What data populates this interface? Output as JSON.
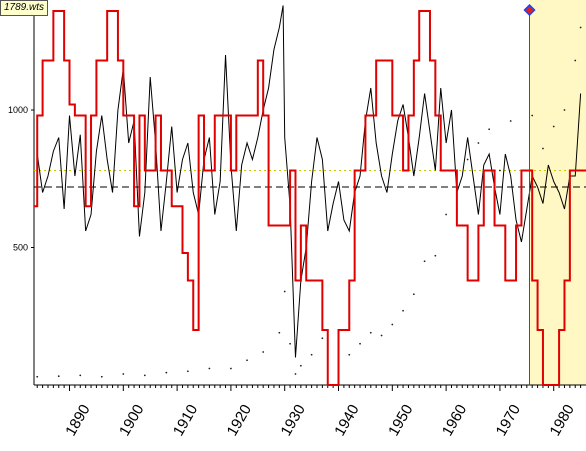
{
  "file_label": "1789.wts",
  "colors": {
    "background": "#ffffff",
    "highlight": "#fff8c4",
    "step_line": "#e00000",
    "price_line": "#000000",
    "index_dots": "#222222",
    "dash_line": "#000000",
    "yellow_dash": "#c8c800",
    "marker_line": "#007a3d",
    "marker_top": "#1a40ff",
    "marker_diamond": "#dd2020"
  },
  "chart_data": {
    "type": "line",
    "title": "",
    "xlabel": "",
    "ylabel": "",
    "xlim": [
      1883.4,
      1986
    ],
    "ylim": [
      0,
      1400
    ],
    "x_ticks": [
      "1890",
      "1900",
      "1910",
      "1920",
      "1930",
      "1940",
      "1950",
      "1960",
      "1970",
      "1980"
    ],
    "y_ticks": [
      "500",
      "1000"
    ],
    "highlight_range": [
      1975.5,
      1986
    ],
    "marker_year": 1975.5,
    "reference_lines": {
      "dashed_black": 720,
      "dashed_yellow": 780
    },
    "series": [
      {
        "values": [
          [
            1884,
            840
          ],
          [
            1885,
            700
          ],
          [
            1886,
            760
          ],
          [
            1887,
            850
          ],
          [
            1888,
            900
          ],
          [
            1889,
            640
          ],
          [
            1890,
            980
          ],
          [
            1891,
            760
          ],
          [
            1892,
            910
          ],
          [
            1893,
            560
          ],
          [
            1894,
            620
          ],
          [
            1895,
            850
          ],
          [
            1896,
            980
          ],
          [
            1897,
            820
          ],
          [
            1898,
            700
          ],
          [
            1899,
            1000
          ],
          [
            1900,
            1150
          ],
          [
            1901,
            880
          ],
          [
            1902,
            960
          ],
          [
            1903,
            540
          ],
          [
            1904,
            700
          ],
          [
            1905,
            1120
          ],
          [
            1906,
            880
          ],
          [
            1907,
            560
          ],
          [
            1908,
            740
          ],
          [
            1909,
            940
          ],
          [
            1910,
            700
          ],
          [
            1911,
            820
          ],
          [
            1912,
            880
          ],
          [
            1913,
            700
          ],
          [
            1914,
            620
          ],
          [
            1915,
            820
          ],
          [
            1916,
            900
          ],
          [
            1917,
            620
          ],
          [
            1918,
            740
          ],
          [
            1919,
            1200
          ],
          [
            1920,
            800
          ],
          [
            1921,
            560
          ],
          [
            1922,
            800
          ],
          [
            1923,
            880
          ],
          [
            1924,
            820
          ],
          [
            1925,
            900
          ],
          [
            1926,
            1000
          ],
          [
            1927,
            1080
          ],
          [
            1928,
            1220
          ],
          [
            1929,
            1300
          ],
          [
            1929.7,
            1380
          ],
          [
            1930,
            900
          ],
          [
            1931,
            650
          ],
          [
            1932,
            100
          ],
          [
            1933,
            380
          ],
          [
            1934,
            500
          ],
          [
            1935,
            740
          ],
          [
            1936,
            900
          ],
          [
            1937,
            820
          ],
          [
            1938,
            560
          ],
          [
            1939,
            660
          ],
          [
            1940,
            740
          ],
          [
            1941,
            600
          ],
          [
            1942,
            560
          ],
          [
            1943,
            700
          ],
          [
            1944,
            760
          ],
          [
            1945,
            960
          ],
          [
            1946,
            1080
          ],
          [
            1947,
            880
          ],
          [
            1948,
            760
          ],
          [
            1949,
            700
          ],
          [
            1950,
            840
          ],
          [
            1951,
            960
          ],
          [
            1952,
            1020
          ],
          [
            1953,
            900
          ],
          [
            1954,
            760
          ],
          [
            1955,
            900
          ],
          [
            1956,
            1060
          ],
          [
            1957,
            920
          ],
          [
            1958,
            780
          ],
          [
            1959,
            1080
          ],
          [
            1960,
            880
          ],
          [
            1961,
            1000
          ],
          [
            1962,
            700
          ],
          [
            1963,
            760
          ],
          [
            1964,
            900
          ],
          [
            1965,
            760
          ],
          [
            1966,
            620
          ],
          [
            1967,
            800
          ],
          [
            1968,
            840
          ],
          [
            1969,
            720
          ],
          [
            1970,
            620
          ],
          [
            1971,
            840
          ],
          [
            1972,
            760
          ],
          [
            1973,
            600
          ],
          [
            1974,
            520
          ],
          [
            1975,
            640
          ],
          [
            1976,
            760
          ],
          [
            1977,
            720
          ],
          [
            1978,
            660
          ],
          [
            1979,
            800
          ],
          [
            1980,
            740
          ],
          [
            1981,
            700
          ],
          [
            1982,
            640
          ],
          [
            1983,
            760
          ],
          [
            1984,
            760
          ],
          [
            1985,
            1060
          ]
        ]
      },
      {
        "values": [
          [
            1884,
            30
          ],
          [
            1888,
            32
          ],
          [
            1892,
            35
          ],
          [
            1896,
            30
          ],
          [
            1900,
            40
          ],
          [
            1904,
            35
          ],
          [
            1908,
            45
          ],
          [
            1912,
            50
          ],
          [
            1916,
            60
          ],
          [
            1920,
            60
          ],
          [
            1923,
            90
          ],
          [
            1926,
            120
          ],
          [
            1929,
            190
          ],
          [
            1930,
            340
          ],
          [
            1931,
            150
          ],
          [
            1932,
            40
          ],
          [
            1933,
            70
          ],
          [
            1935,
            110
          ],
          [
            1937,
            170
          ],
          [
            1938,
            120
          ],
          [
            1940,
            140
          ],
          [
            1942,
            110
          ],
          [
            1944,
            150
          ],
          [
            1946,
            190
          ],
          [
            1948,
            180
          ],
          [
            1950,
            220
          ],
          [
            1952,
            270
          ],
          [
            1954,
            330
          ],
          [
            1956,
            450
          ],
          [
            1958,
            470
          ],
          [
            1960,
            620
          ],
          [
            1962,
            640
          ],
          [
            1964,
            820
          ],
          [
            1966,
            880
          ],
          [
            1968,
            930
          ],
          [
            1970,
            780
          ],
          [
            1972,
            960
          ],
          [
            1974,
            680
          ],
          [
            1976,
            980
          ],
          [
            1978,
            860
          ],
          [
            1980,
            940
          ],
          [
            1982,
            1000
          ],
          [
            1984,
            1180
          ],
          [
            1985,
            1300
          ]
        ]
      },
      {
        "values": [
          [
            1883.4,
            650
          ],
          [
            1884,
            650
          ],
          [
            1884,
            980
          ],
          [
            1885,
            980
          ],
          [
            1885,
            1180
          ],
          [
            1887,
            1180
          ],
          [
            1887,
            1360
          ],
          [
            1889,
            1360
          ],
          [
            1889,
            1180
          ],
          [
            1890,
            1180
          ],
          [
            1890,
            1020
          ],
          [
            1891,
            1020
          ],
          [
            1891,
            980
          ],
          [
            1893,
            980
          ],
          [
            1893,
            650
          ],
          [
            1894,
            650
          ],
          [
            1894,
            980
          ],
          [
            1895,
            980
          ],
          [
            1895,
            1180
          ],
          [
            1897,
            1180
          ],
          [
            1897,
            1360
          ],
          [
            1899,
            1360
          ],
          [
            1899,
            1180
          ],
          [
            1900,
            1180
          ],
          [
            1900,
            980
          ],
          [
            1902,
            980
          ],
          [
            1902,
            650
          ],
          [
            1903,
            650
          ],
          [
            1903,
            980
          ],
          [
            1904,
            980
          ],
          [
            1904,
            780
          ],
          [
            1906,
            780
          ],
          [
            1906,
            980
          ],
          [
            1907,
            980
          ],
          [
            1907,
            780
          ],
          [
            1909,
            780
          ],
          [
            1909,
            650
          ],
          [
            1911,
            650
          ],
          [
            1911,
            480
          ],
          [
            1912,
            480
          ],
          [
            1912,
            380
          ],
          [
            1913,
            380
          ],
          [
            1913,
            200
          ],
          [
            1914,
            200
          ],
          [
            1914,
            980
          ],
          [
            1915,
            980
          ],
          [
            1915,
            780
          ],
          [
            1917,
            780
          ],
          [
            1917,
            980
          ],
          [
            1920,
            980
          ],
          [
            1920,
            780
          ],
          [
            1921,
            780
          ],
          [
            1921,
            980
          ],
          [
            1925,
            980
          ],
          [
            1925,
            1180
          ],
          [
            1926,
            1180
          ],
          [
            1926,
            980
          ],
          [
            1927,
            980
          ],
          [
            1927,
            580
          ],
          [
            1931,
            580
          ],
          [
            1931,
            780
          ],
          [
            1932,
            780
          ],
          [
            1932,
            380
          ],
          [
            1933,
            380
          ],
          [
            1933,
            580
          ],
          [
            1934,
            580
          ],
          [
            1934,
            380
          ],
          [
            1937,
            380
          ],
          [
            1937,
            200
          ],
          [
            1938,
            200
          ],
          [
            1938,
            0
          ],
          [
            1940,
            0
          ],
          [
            1940,
            200
          ],
          [
            1942,
            200
          ],
          [
            1942,
            380
          ],
          [
            1943,
            380
          ],
          [
            1943,
            780
          ],
          [
            1945,
            780
          ],
          [
            1945,
            980
          ],
          [
            1947,
            980
          ],
          [
            1947,
            1180
          ],
          [
            1950,
            1180
          ],
          [
            1950,
            980
          ],
          [
            1952,
            980
          ],
          [
            1952,
            780
          ],
          [
            1953,
            780
          ],
          [
            1953,
            980
          ],
          [
            1954,
            980
          ],
          [
            1954,
            1180
          ],
          [
            1955,
            1180
          ],
          [
            1955,
            1360
          ],
          [
            1957,
            1360
          ],
          [
            1957,
            1180
          ],
          [
            1958,
            1180
          ],
          [
            1958,
            980
          ],
          [
            1959,
            980
          ],
          [
            1959,
            780
          ],
          [
            1962,
            780
          ],
          [
            1962,
            580
          ],
          [
            1964,
            580
          ],
          [
            1964,
            380
          ],
          [
            1966,
            380
          ],
          [
            1966,
            580
          ],
          [
            1967,
            580
          ],
          [
            1967,
            780
          ],
          [
            1969,
            780
          ],
          [
            1969,
            580
          ],
          [
            1971,
            580
          ],
          [
            1971,
            380
          ],
          [
            1973,
            380
          ],
          [
            1973,
            580
          ],
          [
            1974,
            580
          ],
          [
            1974,
            780
          ],
          [
            1976,
            780
          ],
          [
            1976,
            380
          ],
          [
            1977,
            380
          ],
          [
            1977,
            200
          ],
          [
            1978,
            200
          ],
          [
            1978,
            0
          ],
          [
            1981,
            0
          ],
          [
            1981,
            200
          ],
          [
            1982,
            200
          ],
          [
            1982,
            380
          ],
          [
            1983,
            380
          ],
          [
            1983,
            780
          ],
          [
            1986,
            780
          ]
        ]
      }
    ]
  }
}
